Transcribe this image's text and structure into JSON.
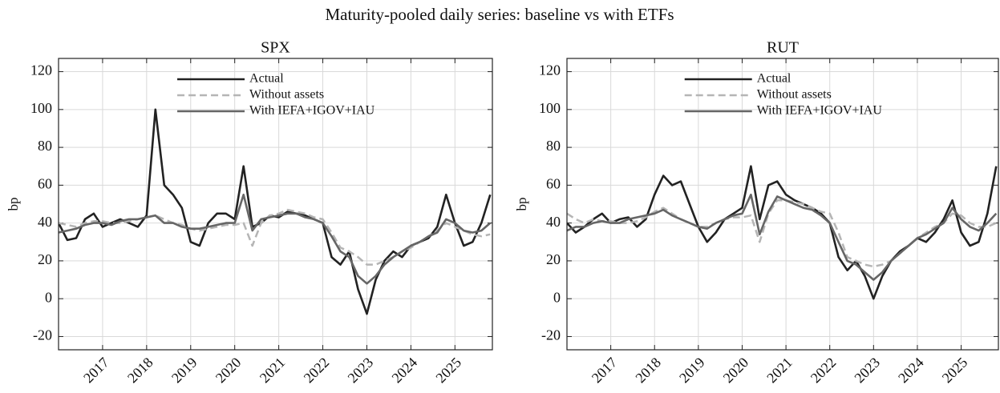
{
  "title": "Maturity-pooled daily series: baseline vs with ETFs",
  "chart_data": [
    {
      "type": "line",
      "title": "SPX",
      "ylabel": "bp",
      "grid": true,
      "legend": "upper center",
      "x": [
        2016.0,
        2016.2,
        2016.4,
        2016.6,
        2016.8,
        2017.0,
        2017.2,
        2017.4,
        2017.6,
        2017.8,
        2018.0,
        2018.2,
        2018.4,
        2018.6,
        2018.8,
        2019.0,
        2019.2,
        2019.4,
        2019.6,
        2019.8,
        2020.0,
        2020.2,
        2020.4,
        2020.6,
        2020.8,
        2021.0,
        2021.2,
        2021.4,
        2021.6,
        2021.8,
        2022.0,
        2022.2,
        2022.4,
        2022.6,
        2022.8,
        2023.0,
        2023.2,
        2023.4,
        2023.6,
        2023.8,
        2024.0,
        2024.2,
        2024.4,
        2024.6,
        2024.8,
        2025.0,
        2025.2,
        2025.4,
        2025.6,
        2025.8
      ],
      "xlim": [
        2016.0,
        2025.85
      ],
      "xticks": [
        2017,
        2018,
        2019,
        2020,
        2021,
        2022,
        2023,
        2024,
        2025
      ],
      "ylim": [
        -27,
        127
      ],
      "yticks": [
        -20,
        0,
        20,
        40,
        60,
        80,
        100,
        120
      ],
      "series": [
        {
          "name": "Actual",
          "color": "#222222",
          "style": "solid",
          "values": [
            40,
            31,
            32,
            42,
            45,
            38,
            40,
            42,
            40,
            38,
            44,
            100,
            60,
            55,
            48,
            30,
            28,
            40,
            45,
            45,
            42,
            70,
            38,
            40,
            44,
            43,
            46,
            45,
            44,
            42,
            40,
            22,
            18,
            25,
            5,
            -8,
            10,
            20,
            25,
            22,
            28,
            30,
            32,
            38,
            55,
            40,
            28,
            30,
            40,
            55
          ]
        },
        {
          "name": "Without assets",
          "color": "#b5b5b5",
          "style": "dashed",
          "values": [
            40,
            39,
            38,
            40,
            41,
            41,
            40,
            40,
            41,
            42,
            43,
            44,
            42,
            40,
            39,
            37,
            36,
            37,
            38,
            39,
            39,
            40,
            28,
            40,
            44,
            45,
            47,
            46,
            45,
            43,
            42,
            35,
            27,
            25,
            22,
            18,
            18,
            20,
            22,
            25,
            27,
            30,
            33,
            36,
            40,
            38,
            36,
            34,
            33,
            34
          ]
        },
        {
          "name": "With IEFA+IGOV+IAU",
          "color": "#666666",
          "style": "solid",
          "values": [
            35,
            36,
            37,
            39,
            40,
            40,
            39,
            41,
            42,
            42,
            43,
            44,
            40,
            40,
            38,
            37,
            37,
            38,
            39,
            40,
            40,
            55,
            36,
            42,
            43,
            44,
            45,
            45,
            43,
            42,
            40,
            33,
            25,
            22,
            12,
            8,
            12,
            18,
            22,
            25,
            28,
            30,
            33,
            35,
            42,
            40,
            36,
            35,
            36,
            40
          ]
        }
      ]
    },
    {
      "type": "line",
      "title": "RUT",
      "ylabel": "bp",
      "grid": true,
      "legend": "upper center",
      "x": [
        2016.0,
        2016.2,
        2016.4,
        2016.6,
        2016.8,
        2017.0,
        2017.2,
        2017.4,
        2017.6,
        2017.8,
        2018.0,
        2018.2,
        2018.4,
        2018.6,
        2018.8,
        2019.0,
        2019.2,
        2019.4,
        2019.6,
        2019.8,
        2020.0,
        2020.2,
        2020.4,
        2020.6,
        2020.8,
        2021.0,
        2021.2,
        2021.4,
        2021.6,
        2021.8,
        2022.0,
        2022.2,
        2022.4,
        2022.6,
        2022.8,
        2023.0,
        2023.2,
        2023.4,
        2023.6,
        2023.8,
        2024.0,
        2024.2,
        2024.4,
        2024.6,
        2024.8,
        2025.0,
        2025.2,
        2025.4,
        2025.6,
        2025.8
      ],
      "xlim": [
        2016.0,
        2025.85
      ],
      "xticks": [
        2017,
        2018,
        2019,
        2020,
        2021,
        2022,
        2023,
        2024,
        2025
      ],
      "ylim": [
        -27,
        127
      ],
      "yticks": [
        -20,
        0,
        20,
        40,
        60,
        80,
        100,
        120
      ],
      "series": [
        {
          "name": "Actual",
          "color": "#222222",
          "style": "solid",
          "values": [
            40,
            35,
            38,
            42,
            45,
            40,
            42,
            43,
            38,
            42,
            55,
            65,
            60,
            62,
            50,
            38,
            30,
            35,
            42,
            45,
            48,
            70,
            42,
            60,
            62,
            55,
            52,
            50,
            48,
            45,
            40,
            22,
            15,
            20,
            12,
            0,
            12,
            20,
            25,
            28,
            32,
            30,
            35,
            42,
            52,
            35,
            28,
            30,
            45,
            70
          ]
        },
        {
          "name": "Without assets",
          "color": "#b5b5b5",
          "style": "dashed",
          "values": [
            45,
            42,
            40,
            42,
            41,
            41,
            40,
            40,
            41,
            43,
            46,
            48,
            45,
            42,
            40,
            38,
            38,
            40,
            42,
            43,
            43,
            44,
            30,
            45,
            52,
            52,
            51,
            50,
            48,
            46,
            45,
            35,
            22,
            20,
            18,
            17,
            18,
            20,
            24,
            28,
            32,
            35,
            38,
            40,
            45,
            44,
            40,
            38,
            38,
            40
          ]
        },
        {
          "name": "With IEFA+IGOV+IAU",
          "color": "#666666",
          "style": "solid",
          "values": [
            36,
            38,
            38,
            40,
            41,
            40,
            40,
            42,
            43,
            44,
            45,
            47,
            44,
            42,
            40,
            38,
            37,
            40,
            42,
            44,
            45,
            55,
            34,
            46,
            54,
            52,
            50,
            48,
            47,
            44,
            40,
            30,
            20,
            18,
            14,
            10,
            14,
            20,
            24,
            28,
            32,
            34,
            37,
            40,
            48,
            42,
            38,
            36,
            40,
            45
          ]
        }
      ]
    }
  ]
}
